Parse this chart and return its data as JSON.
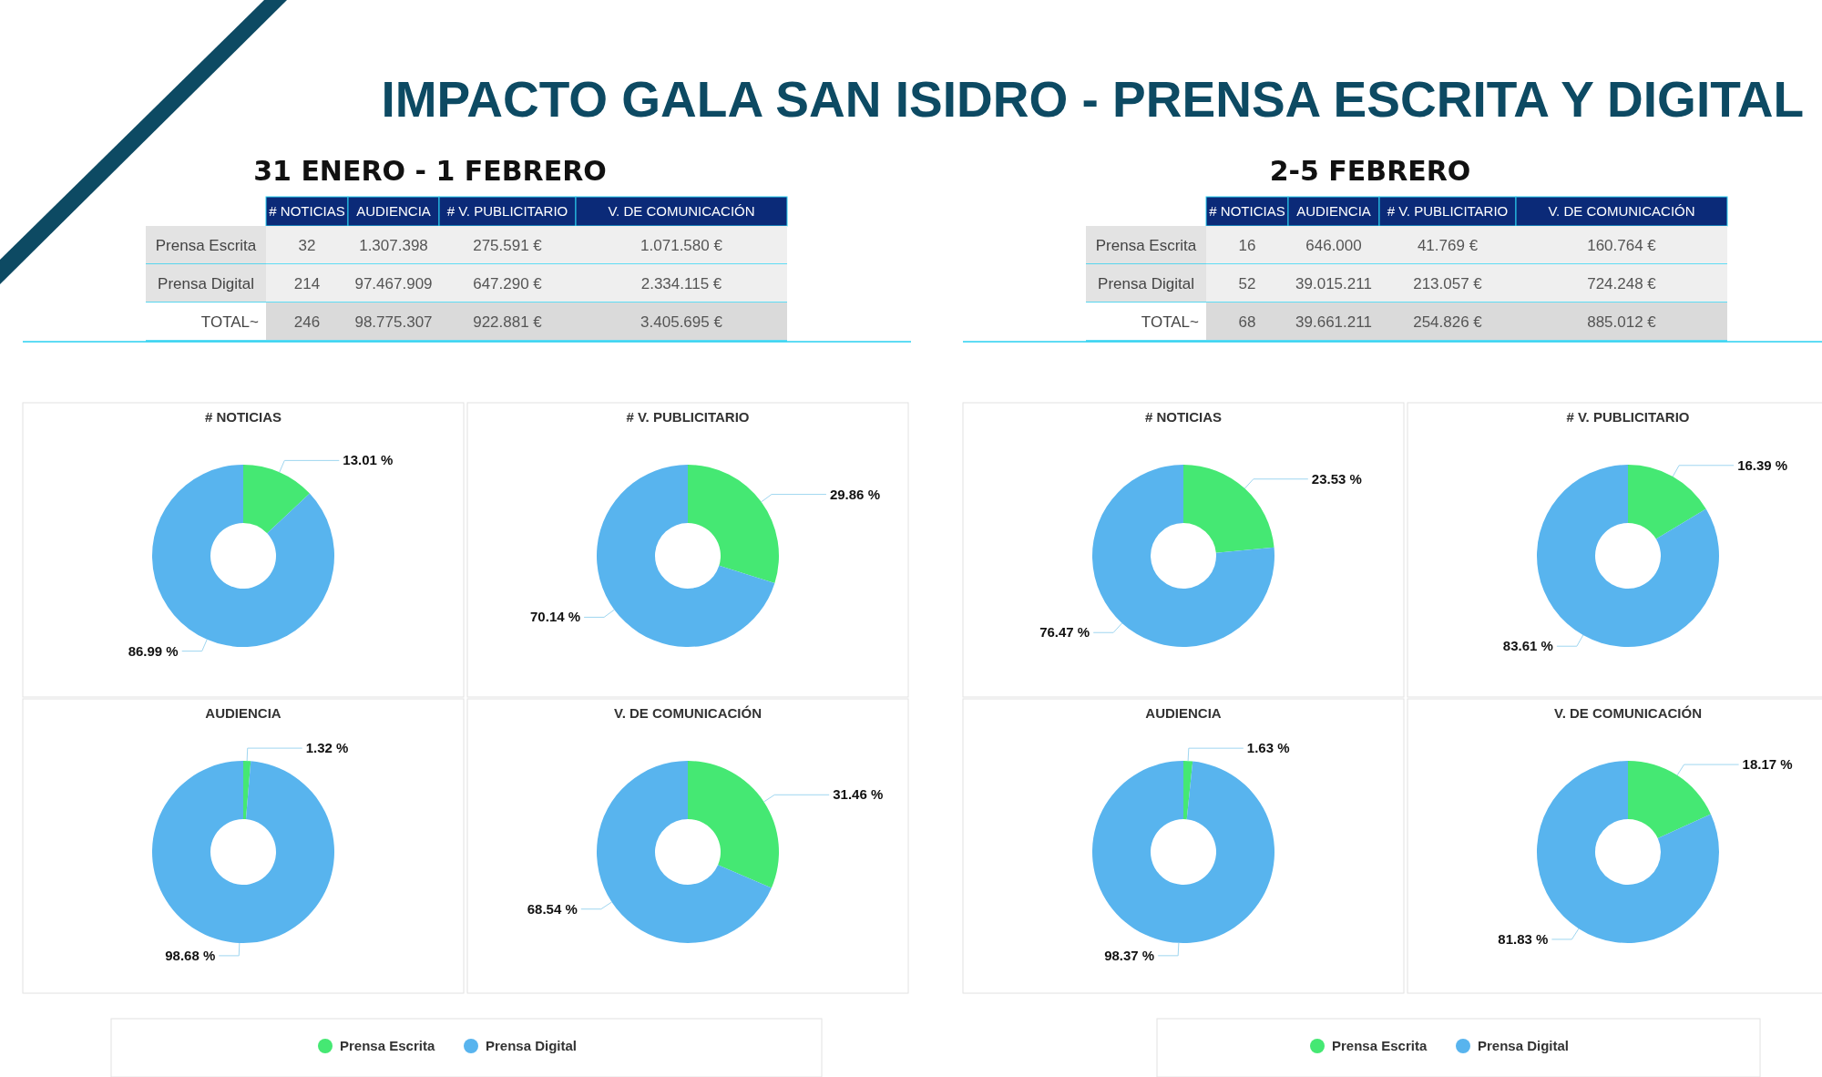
{
  "chart_data": [
    {
      "type": "other",
      "title": "IMPACTO GALA SAN ISIDRO - PRENSA ESCRITA Y DIGITAL",
      "subtitle": "31 ENERO - 1 FEBRERO",
      "categories": [
        "# NOTICIAS",
        "AUDIENCIA",
        "# V. PUBLICITARIO",
        "V. DE COMUNICACIÓN"
      ],
      "y_categories": [
        "Prensa Escrita",
        "Prensa Digital",
        "TOTAL~"
      ],
      "cell_labels": [
        [
          "32",
          "1.307.398",
          "275.591 €",
          "1.071.580 €"
        ],
        [
          "214",
          "97.467.909",
          "647.290 €",
          "2.334.115 €"
        ],
        [
          "246",
          "98.775.307",
          "922.881 €",
          "3.405.695 €"
        ]
      ]
    },
    {
      "type": "donut",
      "title": "# NOTICIAS",
      "categories": [
        null,
        null
      ],
      "values": [
        13.01,
        86.99
      ],
      "colors": [
        "#45e873",
        "#58b4ee"
      ],
      "value_labels": [
        "13.01 %",
        "86.99 %"
      ]
    },
    {
      "type": "donut",
      "title": "# V. PUBLICITARIO",
      "categories": [
        null,
        null
      ],
      "values": [
        29.86,
        70.14
      ],
      "colors": [
        "#45e873",
        "#58b4ee"
      ],
      "value_labels": [
        "29.86 %",
        "70.14 %"
      ]
    },
    {
      "type": "donut",
      "title": "AUDIENCIA",
      "categories": [
        "Prensa Escrita",
        "Prensa Digital"
      ],
      "values": [
        1.32,
        98.68
      ],
      "colors": [
        "#45e873",
        "#58b4ee"
      ],
      "value_labels": [
        "1.32 %",
        "98.68 %"
      ],
      "legend": "bottom"
    },
    {
      "type": "donut",
      "title": "V. DE COMUNICACIÓN",
      "categories": [
        null,
        null
      ],
      "values": [
        31.46,
        68.54
      ],
      "colors": [
        "#45e873",
        "#58b4ee"
      ],
      "value_labels": [
        "31.46 %",
        "68.54 %"
      ]
    },
    {
      "type": "other",
      "subtitle": "2-5 FEBRERO",
      "categories": [
        "# NOTICIAS",
        "AUDIENCIA",
        "# V. PUBLICITARIO",
        "V. DE COMUNICACIÓN"
      ],
      "y_categories": [
        "Prensa Escrita",
        "Prensa Digital",
        "TOTAL~"
      ],
      "cell_labels": [
        [
          "16",
          "646.000",
          "41.769 €",
          "160.764 €"
        ],
        [
          "52",
          "39.015.211",
          "213.057 €",
          "724.248 €"
        ],
        [
          "68",
          "39.661.211",
          "254.826 €",
          "885.012 €"
        ]
      ]
    },
    {
      "type": "donut",
      "title": "# NOTICIAS",
      "categories": [
        null,
        null
      ],
      "values": [
        23.53,
        76.47
      ],
      "colors": [
        "#45e873",
        "#58b4ee"
      ],
      "value_labels": [
        "23.53 %",
        "76.47 %"
      ]
    },
    {
      "type": "donut",
      "title": "# V. PUBLICITARIO",
      "categories": [
        null,
        null
      ],
      "values": [
        16.39,
        83.61
      ],
      "colors": [
        "#45e873",
        "#58b4ee"
      ],
      "value_labels": [
        "16.39 %",
        "83.61 %"
      ]
    },
    {
      "type": "donut",
      "title": "AUDIENCIA",
      "categories": [
        "Prensa Escrita",
        "Prensa Digital"
      ],
      "values": [
        1.63,
        98.37
      ],
      "colors": [
        "#45e873",
        "#58b4ee"
      ],
      "value_labels": [
        "1.63 %",
        "98.37 %"
      ],
      "legend": "bottom"
    },
    {
      "type": "donut",
      "title": "V. DE COMUNICACIÓN",
      "categories": [
        null,
        null
      ],
      "values": [
        18.17,
        81.83
      ],
      "colors": [
        "#45e873",
        "#58b4ee"
      ],
      "value_labels": [
        "18.17 %",
        "81.83 %"
      ]
    }
  ]
}
